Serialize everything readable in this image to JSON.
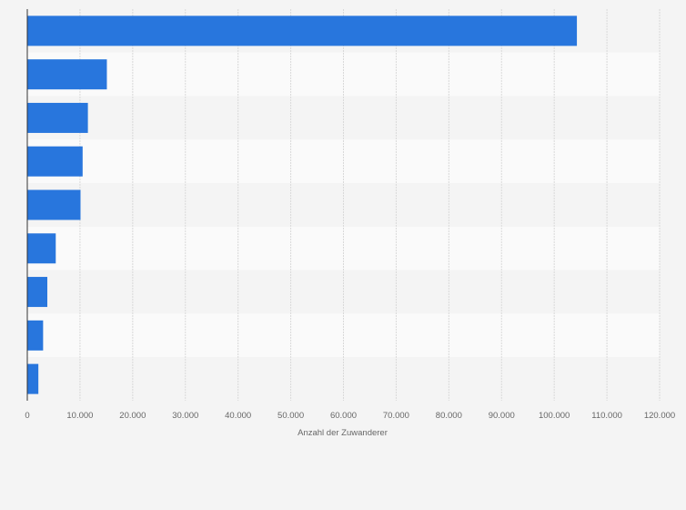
{
  "chart_data": {
    "type": "bar",
    "orientation": "horizontal",
    "categories": [
      "",
      "",
      "",
      "",
      "",
      "",
      "",
      "",
      ""
    ],
    "values": [
      104300,
      15100,
      11500,
      10500,
      10100,
      5400,
      3800,
      3000,
      2100
    ],
    "title": "",
    "xlabel": "Anzahl der Zuwanderer",
    "ylabel": "",
    "xlim": [
      0,
      120000
    ],
    "xticks": [
      0,
      10000,
      20000,
      30000,
      40000,
      50000,
      60000,
      70000,
      80000,
      90000,
      100000,
      110000,
      120000
    ],
    "xtick_labels": [
      "0",
      "10.000",
      "20.000",
      "30.000",
      "40.000",
      "50.000",
      "60.000",
      "70.000",
      "80.000",
      "90.000",
      "100.000",
      "110.000",
      "120.000"
    ],
    "grid": true,
    "legend": "none",
    "bar_color": "#2876dd",
    "band_colors": [
      "#f4f4f4",
      "#fafafa"
    ],
    "gridline_color": "#d9d9d9",
    "axis_color": "#333333",
    "background": "#f4f4f4"
  }
}
